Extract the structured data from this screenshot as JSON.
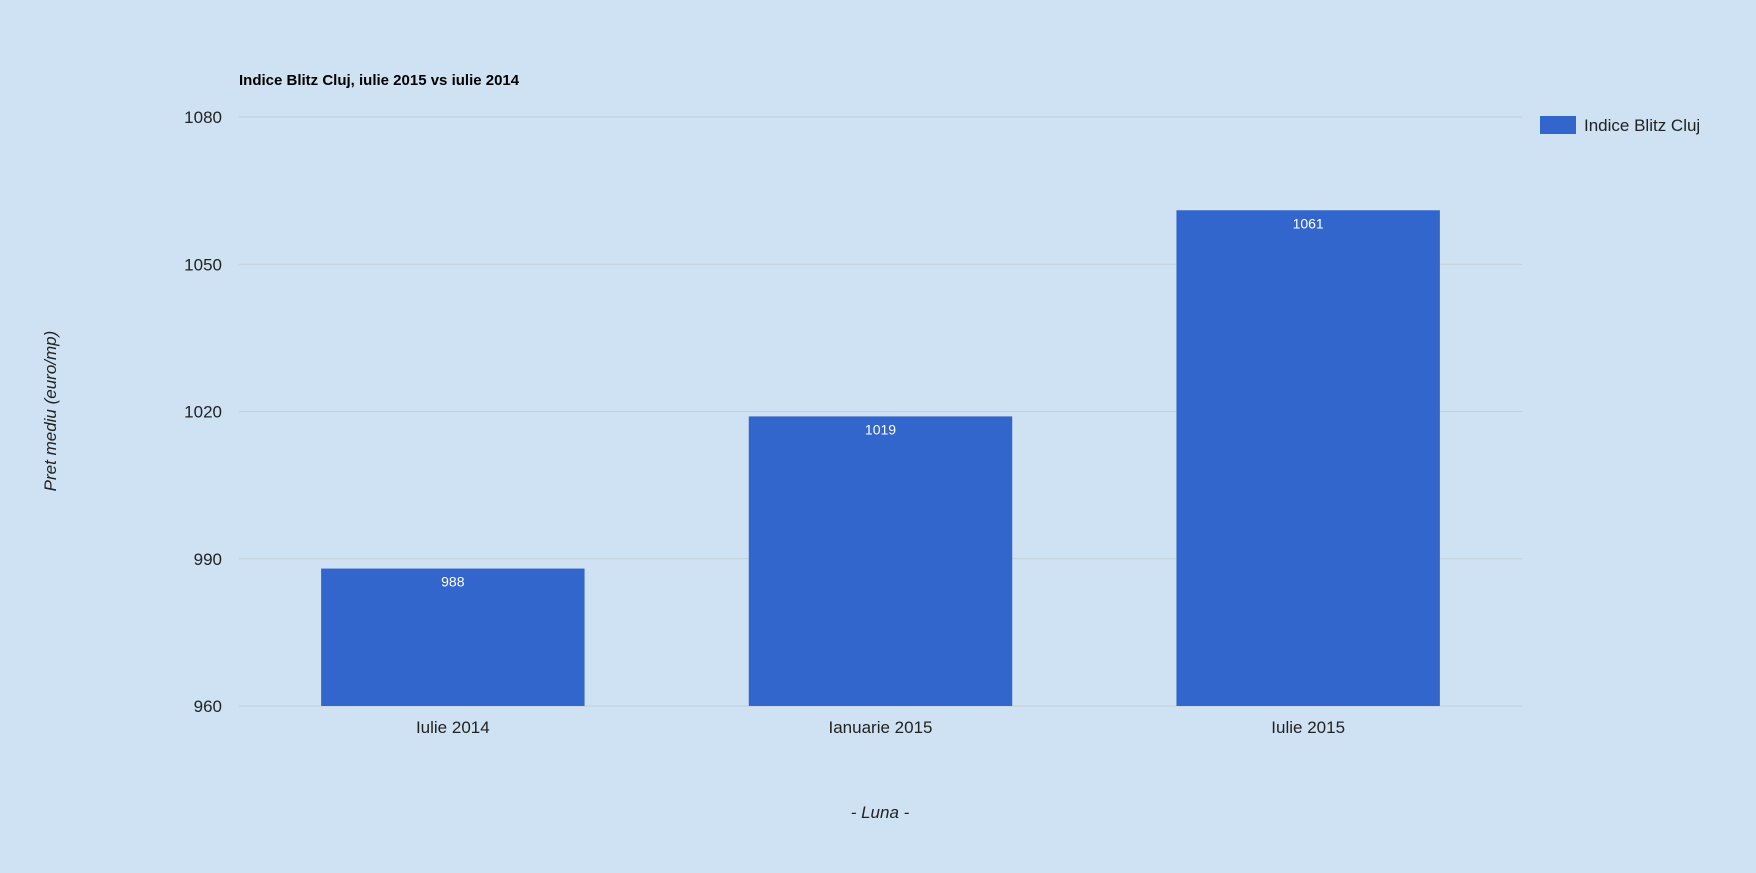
{
  "chart_data": {
    "type": "bar",
    "title": "Indice Blitz Cluj, iulie 2015 vs iulie 2014",
    "xlabel": "- Luna -",
    "ylabel": "Pret mediu (euro/mp)",
    "categories": [
      "Iulie 2014",
      "Ianuarie 2015",
      "Iulie 2015"
    ],
    "series": [
      {
        "name": "Indice Blitz Cluj",
        "values": [
          988,
          1019,
          1061
        ],
        "color": "#3266cc"
      }
    ],
    "data_labels": [
      "988",
      "1019",
      "1061"
    ],
    "ylim": [
      960,
      1080
    ],
    "yticks": [
      960,
      990,
      1020,
      1050,
      1080
    ],
    "ytick_labels": [
      "960",
      "990",
      "1020",
      "1050",
      "1080"
    ],
    "grid": true,
    "legend_position": "right"
  },
  "colors": {
    "background": "#cfe2f3",
    "bar": "#3266cc",
    "gridline": "#c3cfd9"
  }
}
